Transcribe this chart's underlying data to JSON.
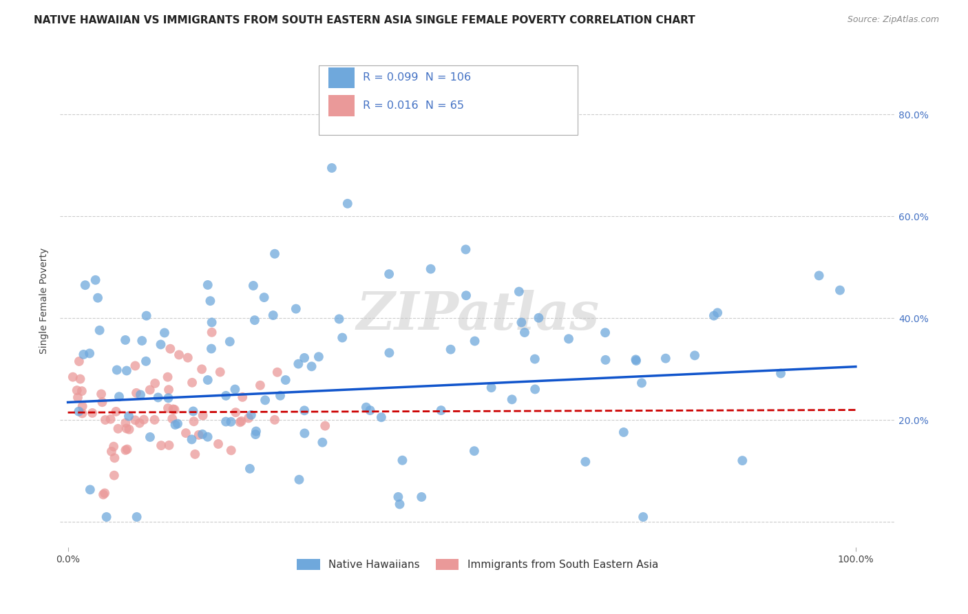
{
  "title": "NATIVE HAWAIIAN VS IMMIGRANTS FROM SOUTH EASTERN ASIA SINGLE FEMALE POVERTY CORRELATION CHART",
  "source": "Source: ZipAtlas.com",
  "ylabel": "Single Female Poverty",
  "xlim": [
    -0.01,
    1.05
  ],
  "ylim": [
    -0.05,
    0.92
  ],
  "ytick_values": [
    0.0,
    0.2,
    0.4,
    0.6,
    0.8
  ],
  "ytick_labels": [
    "",
    "20.0%",
    "40.0%",
    "60.0%",
    "80.0%"
  ],
  "xtick_values": [
    0.0,
    1.0
  ],
  "xtick_labels": [
    "0.0%",
    "100.0%"
  ],
  "blue_R": 0.099,
  "blue_N": 106,
  "pink_R": 0.016,
  "pink_N": 65,
  "blue_color": "#6fa8dc",
  "pink_color": "#ea9999",
  "blue_line_color": "#1155cc",
  "pink_line_color": "#cc0000",
  "watermark": "ZIPatlas",
  "legend1_label": "Native Hawaiians",
  "legend2_label": "Immigrants from South Eastern Asia",
  "blue_line_x": [
    0.0,
    1.0
  ],
  "blue_line_y": [
    0.235,
    0.305
  ],
  "pink_line_x": [
    0.0,
    1.0
  ],
  "pink_line_y": [
    0.215,
    0.22
  ],
  "title_fontsize": 11,
  "source_fontsize": 9,
  "tick_fontsize": 10,
  "ylabel_fontsize": 10,
  "grid_color": "#cccccc",
  "legend_text_color": "#4472c4",
  "legend_box_color": "#aaaaaa"
}
